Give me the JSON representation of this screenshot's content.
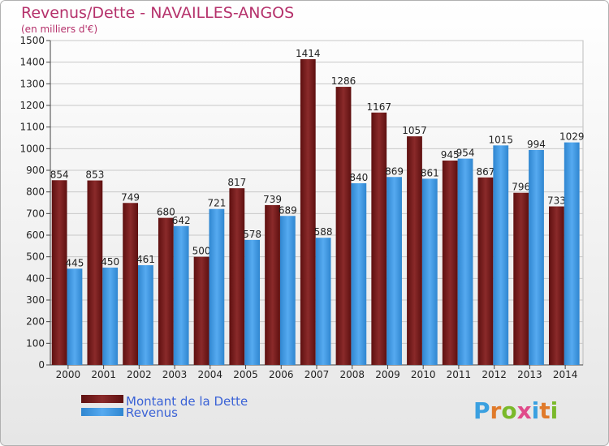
{
  "chart_data": {
    "type": "bar",
    "title": "Revenus/Dette - NAVAILLES-ANGOS",
    "subtitle": "(en milliers d'€)",
    "categories": [
      "2000",
      "2001",
      "2002",
      "2003",
      "2004",
      "2005",
      "2006",
      "2007",
      "2008",
      "2009",
      "2010",
      "2011",
      "2012",
      "2013",
      "2014"
    ],
    "series": [
      {
        "name": "Montant de la Dette",
        "color": "#7a1a1a",
        "values": [
          854,
          853,
          749,
          680,
          500,
          817,
          739,
          1414,
          1286,
          1167,
          1057,
          945,
          867,
          796,
          733
        ]
      },
      {
        "name": "Revenus",
        "color": "#3a96e0",
        "values": [
          445,
          450,
          461,
          642,
          721,
          578,
          689,
          588,
          840,
          869,
          861,
          954,
          1015,
          994,
          1029
        ]
      }
    ],
    "ylim": [
      0,
      1500
    ],
    "yticks": [
      0,
      100,
      200,
      300,
      400,
      500,
      600,
      700,
      800,
      900,
      1000,
      1100,
      1200,
      1300,
      1400,
      1500
    ],
    "grid": true,
    "legend_position": "bottom-left"
  },
  "brand": {
    "text": "Proxiti",
    "colors": [
      "#3aa0e0",
      "#e07a2a",
      "#7ab92a",
      "#e04a8a"
    ]
  }
}
